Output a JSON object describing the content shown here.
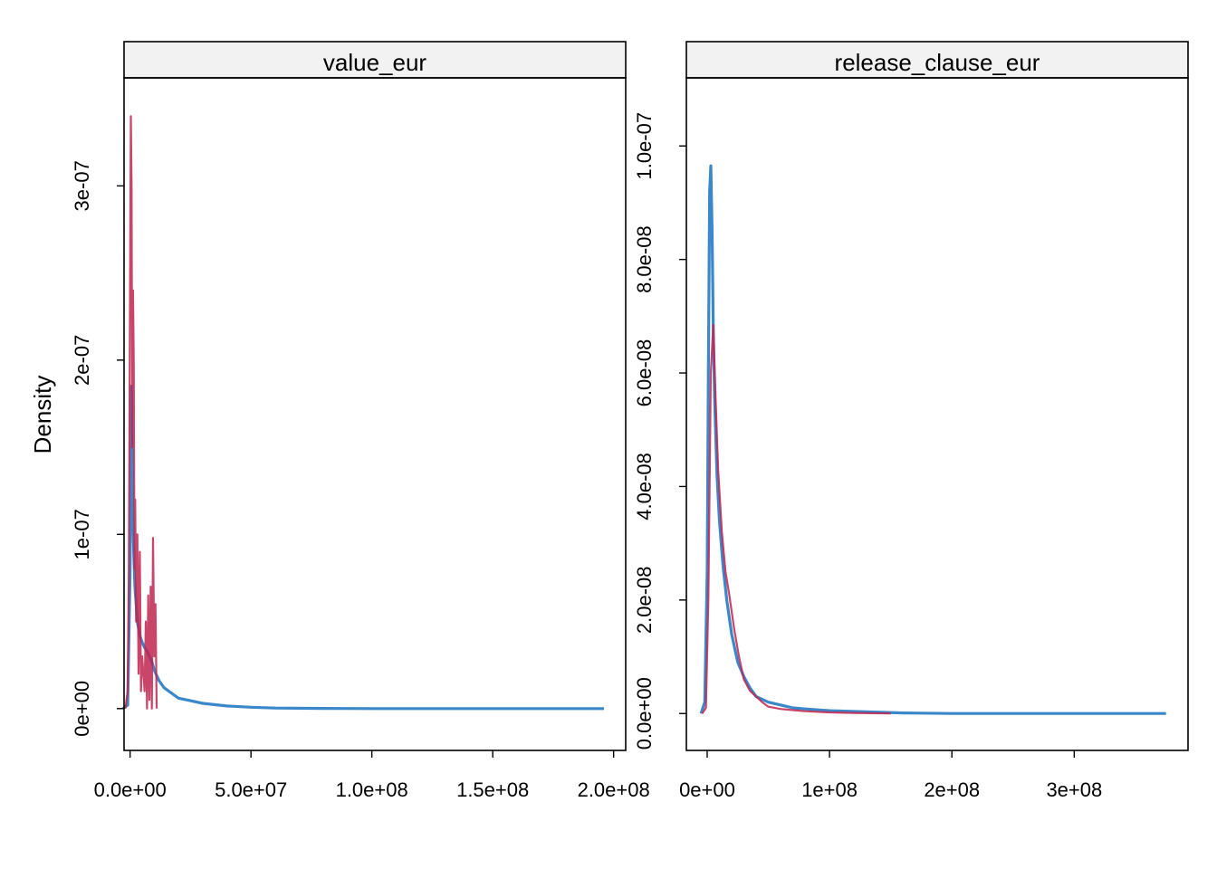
{
  "ylabel": "Density",
  "colors": {
    "blue": "#3a87c9",
    "red": "#c0244f",
    "strip_bg": "#f2f2f2",
    "frame": "#000000"
  },
  "chart_data": [
    {
      "type": "line",
      "title": "value_eur",
      "xlabel": "",
      "ylabel": "Density",
      "xlim": [
        -2500000.0,
        205000000.0
      ],
      "ylim": [
        -2.4e-08,
        3.62e-07
      ],
      "xticks": [
        0,
        50000000.0,
        100000000.0,
        150000000.0,
        200000000.0
      ],
      "xtick_labels": [
        "0.0e+00",
        "5.0e+07",
        "1.0e+08",
        "1.5e+08",
        "2.0e+08"
      ],
      "yticks": [
        0,
        1e-07,
        2e-07,
        3e-07
      ],
      "ytick_labels": [
        "0e+00",
        "1e-07",
        "2e-07",
        "3e-07"
      ],
      "grid": false,
      "series": [
        {
          "color": "blue",
          "width": 3.2,
          "x": [
            -3000000.0,
            -1000000.0,
            0,
            500000,
            1000000,
            1500000,
            2000000,
            3000000,
            4000000,
            5000000,
            6000000,
            7000000,
            8000000,
            9000000,
            10000000,
            12000000,
            14000000,
            17000000,
            20000000,
            25000000,
            30000000,
            40000000,
            50000000,
            60000000,
            80000000,
            100000000,
            150000000,
            196000000
          ],
          "y": [
            0,
            2e-09,
            8e-08,
            1.85e-07,
            1.2e-07,
            9e-08,
            7e-08,
            5e-08,
            4.2e-08,
            3.8e-08,
            3.5e-08,
            3.3e-08,
            3e-08,
            2.7e-08,
            2.2e-08,
            1.6e-08,
            1.2e-08,
            9e-09,
            6e-09,
            4.5e-09,
            3e-09,
            1.5e-09,
            8e-10,
            3e-10,
            1e-10,
            0,
            0,
            0
          ]
        },
        {
          "color": "red",
          "width": 2.2,
          "x": [
            -2000000.0,
            -1000000.0,
            -500000,
            0,
            300000,
            600000,
            900000,
            1200000,
            1500000,
            1800000,
            2100000,
            2500000,
            3000000,
            3500000,
            4000000,
            4500000,
            5000000,
            5500000,
            6000000,
            6500000,
            7000000,
            7500000,
            8000000,
            8500000,
            9000000,
            9500000,
            10000000,
            10500000,
            11000000
          ],
          "y": [
            0,
            1e-08,
            8e-08,
            2.5e-07,
            3.4e-07,
            3e-07,
            1.5e-07,
            2.4e-07,
            2e-07,
            8e-08,
            1.2e-07,
            5e-08,
            1e-07,
            2e-08,
            9e-08,
            1e-08,
            3e-08,
            2e-08,
            1e-08,
            5e-08,
            0,
            6.5e-08,
            5e-09,
            7e-08,
            0,
            9.8e-08,
            3e-08,
            6e-08,
            0
          ]
        }
      ]
    },
    {
      "type": "line",
      "title": "release_clause_eur",
      "xlabel": "",
      "ylabel": "",
      "xlim": [
        -17000000.0,
        393000000.0
      ],
      "ylim": [
        -6.5e-09,
        1.12e-07
      ],
      "xticks": [
        0,
        100000000.0,
        200000000.0,
        300000000.0
      ],
      "xtick_labels": [
        "0e+00",
        "1e+08",
        "2e+08",
        "3e+08"
      ],
      "yticks": [
        0,
        2e-08,
        4e-08,
        6e-08,
        8e-08,
        1e-07
      ],
      "ytick_labels": [
        "0.0e+00",
        "2.0e-08",
        "4.0e-08",
        "6.0e-08",
        "8.0e-08",
        "1.0e-07"
      ],
      "grid": false,
      "series": [
        {
          "color": "blue",
          "width": 3.2,
          "x": [
            -5000000.0,
            -2000000.0,
            0,
            1000000,
            2000000,
            3000000,
            4000000,
            5000000,
            6000000,
            8000000,
            10000000,
            13000000,
            16000000,
            20000000,
            25000000,
            30000000,
            35000000,
            40000000,
            50000000,
            60000000,
            70000000,
            80000000,
            100000000,
            130000000,
            160000000,
            200000000,
            250000000,
            300000000,
            375000000
          ],
          "y": [
            0,
            2e-09,
            2.5e-08,
            6e-08,
            9.2e-08,
            9.65e-08,
            8.5e-08,
            6.8e-08,
            5.6e-08,
            4.2e-08,
            3.4e-08,
            2.6e-08,
            2e-08,
            1.4e-08,
            9e-09,
            6.5e-09,
            4.5e-09,
            3e-09,
            2e-09,
            1.5e-09,
            1e-09,
            8e-10,
            5e-10,
            3e-10,
            1e-10,
            0,
            0,
            0,
            0
          ]
        },
        {
          "color": "red",
          "width": 2.2,
          "x": [
            -4000000.0,
            -1000000.0,
            1000000,
            3000000,
            5000000,
            7000000,
            9000000,
            12000000,
            15000000,
            18000000,
            22000000,
            26000000,
            30000000,
            35000000,
            40000000,
            45000000,
            50000000,
            60000000,
            70000000,
            80000000,
            100000000,
            120000000,
            150000000
          ],
          "y": [
            0,
            1e-09,
            2e-08,
            6e-08,
            6.85e-08,
            5.5e-08,
            4.3e-08,
            3.2e-08,
            2.5e-08,
            2.1e-08,
            1.5e-08,
            1e-08,
            6e-09,
            4e-09,
            3e-09,
            2e-09,
            1.2e-09,
            8e-10,
            6e-10,
            4e-10,
            2e-10,
            1e-10,
            0
          ]
        }
      ]
    }
  ]
}
